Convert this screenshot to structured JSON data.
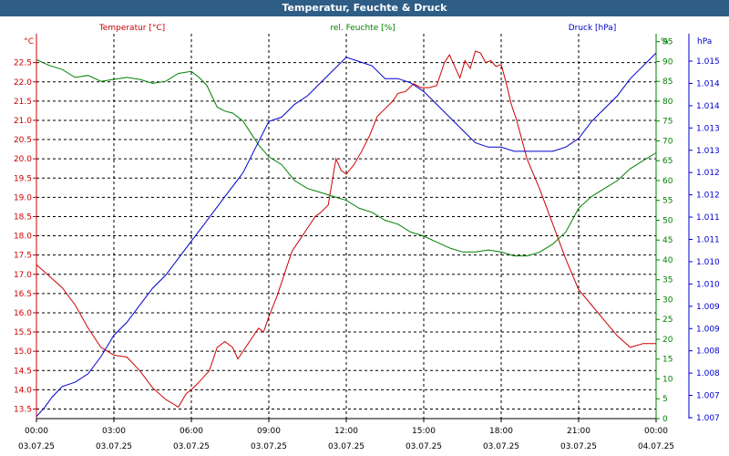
{
  "window": {
    "title": "Temperatur, Feuchte & Druck"
  },
  "colors": {
    "temperature": "#cc0000",
    "humidity": "#008000",
    "pressure": "#0000cc",
    "axis": "#000000",
    "grid": "#000000",
    "title_bg": "#2e5d86"
  },
  "chart_data": {
    "type": "line",
    "title": "Temperatur, Feuchte & Druck",
    "series_labels": {
      "temperature": "Temperatur [°C]",
      "humidity": "rel. Feuchte [%]",
      "pressure": "Druck [hPa]"
    },
    "axis_units": {
      "left": "°C",
      "right1": "%",
      "right2": "hPa"
    },
    "left_ticks": [
      "13.5",
      "14.0",
      "14.5",
      "15.0",
      "15.5",
      "16.0",
      "16.5",
      "17.0",
      "17.5",
      "18.0",
      "18.5",
      "19.0",
      "19.5",
      "20.0",
      "20.5",
      "21.0",
      "21.5",
      "22.0",
      "22.5"
    ],
    "right1_ticks": [
      "0",
      "5",
      "10",
      "15",
      "20",
      "25",
      "30",
      "35",
      "40",
      "45",
      "50",
      "55",
      "60",
      "65",
      "70",
      "75",
      "80",
      "85",
      "90",
      "95"
    ],
    "right2_ticks": [
      "1.007",
      "1.007",
      "1.008",
      "1.008",
      "1.009",
      "1.009",
      "1.010",
      "1.010",
      "1.011",
      "1.011",
      "1.012",
      "1.012",
      "1.013",
      "1.013",
      "1.014",
      "1.014",
      "1.015"
    ],
    "x_ticks": [
      {
        "time": "00:00",
        "date": "03.07.25"
      },
      {
        "time": "03:00",
        "date": "03.07.25"
      },
      {
        "time": "06:00",
        "date": "03.07.25"
      },
      {
        "time": "09:00",
        "date": "03.07.25"
      },
      {
        "time": "12:00",
        "date": "03.07.25"
      },
      {
        "time": "15:00",
        "date": "03.07.25"
      },
      {
        "time": "18:00",
        "date": "03.07.25"
      },
      {
        "time": "21:00",
        "date": "03.07.25"
      },
      {
        "time": "00:00",
        "date": "04.07.25"
      }
    ],
    "xlim_hours": [
      0,
      24
    ],
    "temp_range": [
      13.25,
      23.25
    ],
    "humidity_range": [
      0,
      97
    ],
    "pressure_range": [
      1.00675,
      1.01575
    ],
    "series": [
      {
        "key": "temperature",
        "name": "Temperatur [°C]",
        "x": [
          0,
          0.5,
          1,
          1.5,
          2,
          2.5,
          3,
          3.5,
          4,
          4.5,
          5,
          5.5,
          5.8,
          6,
          6.3,
          6.7,
          7,
          7.3,
          7.6,
          7.8,
          8,
          8.3,
          8.6,
          8.8,
          9,
          9.3,
          9.6,
          9.9,
          10.2,
          10.5,
          10.8,
          11,
          11.3,
          11.6,
          11.8,
          12,
          12.3,
          12.6,
          12.9,
          13.2,
          13.5,
          13.8,
          14,
          14.3,
          14.6,
          14.9,
          15.2,
          15.5,
          15.8,
          16,
          16.2,
          16.4,
          16.6,
          16.8,
          17,
          17.2,
          17.4,
          17.6,
          17.8,
          18,
          18.2,
          18.4,
          18.6,
          18.8,
          19,
          19.5,
          20,
          20.5,
          21,
          21.5,
          22,
          22.5,
          23,
          23.5,
          24
        ],
        "values": [
          17.25,
          16.95,
          16.65,
          16.2,
          15.6,
          15.1,
          14.9,
          14.85,
          14.5,
          14.05,
          13.75,
          13.55,
          13.9,
          14.0,
          14.2,
          14.5,
          15.1,
          15.25,
          15.1,
          14.8,
          15.0,
          15.3,
          15.6,
          15.5,
          15.9,
          16.4,
          17.0,
          17.6,
          17.9,
          18.2,
          18.5,
          18.6,
          18.8,
          20.0,
          19.7,
          19.6,
          19.85,
          20.2,
          20.6,
          21.1,
          21.3,
          21.5,
          21.7,
          21.75,
          21.95,
          21.85,
          21.85,
          21.9,
          22.5,
          22.7,
          22.4,
          22.1,
          22.55,
          22.35,
          22.8,
          22.75,
          22.5,
          22.55,
          22.4,
          22.45,
          21.95,
          21.4,
          21.0,
          20.5,
          20.0,
          19.2,
          18.3,
          17.4,
          16.6,
          16.2,
          15.8,
          15.4,
          15.1,
          15.2,
          15.2
        ]
      },
      {
        "key": "humidity",
        "name": "rel. Feuchte [%]",
        "x": [
          0,
          0.5,
          1,
          1.5,
          2,
          2.5,
          3,
          3.5,
          4,
          4.5,
          5,
          5.5,
          6,
          6.3,
          6.6,
          7,
          7.3,
          7.6,
          8,
          8.3,
          8.6,
          9,
          9.5,
          10,
          10.5,
          11,
          11.5,
          12,
          12.5,
          13,
          13.5,
          14,
          14.5,
          15,
          15.5,
          16,
          16.5,
          17,
          17.5,
          18,
          18.5,
          19,
          19.5,
          20,
          20.5,
          21,
          21.5,
          22,
          22.5,
          23,
          23.5,
          24
        ],
        "values": [
          90.5,
          89,
          88,
          86,
          86.5,
          85,
          85.5,
          86,
          85.5,
          84.5,
          85,
          87,
          87.5,
          86,
          84,
          78.5,
          77.5,
          77,
          75,
          72,
          69,
          66,
          64,
          60,
          58,
          57,
          56,
          55,
          53,
          52,
          50,
          49,
          47,
          46,
          44.5,
          43,
          42,
          42,
          42.5,
          42,
          41,
          41,
          42,
          44,
          47,
          53,
          56,
          58,
          60,
          63,
          65,
          67
        ]
      },
      {
        "key": "pressure",
        "name": "Druck [hPa]",
        "x": [
          0,
          0.3,
          0.6,
          1,
          1.5,
          2,
          2.5,
          3,
          3.5,
          4,
          4.5,
          5,
          5.5,
          6,
          6.5,
          7,
          7.5,
          8,
          8.5,
          9,
          9.5,
          10,
          10.5,
          11,
          11.5,
          12,
          12.5,
          13,
          13.5,
          14,
          14.5,
          15,
          15.5,
          16,
          16.5,
          17,
          17.5,
          18,
          18.5,
          19,
          19.5,
          20,
          20.5,
          21,
          21.5,
          22,
          22.5,
          23,
          23.5,
          24
        ],
        "values": [
          1.0068,
          1.007,
          1.00725,
          1.0075,
          1.0076,
          1.0078,
          1.0082,
          1.0087,
          1.009,
          1.0094,
          1.0098,
          1.0101,
          1.0105,
          1.0109,
          1.0113,
          1.0117,
          1.0121,
          1.0125,
          1.0131,
          1.0137,
          1.0138,
          1.0141,
          1.0143,
          1.0146,
          1.0149,
          1.0152,
          1.0151,
          1.015,
          1.0147,
          1.0147,
          1.0146,
          1.0144,
          1.0141,
          1.0138,
          1.0135,
          1.0132,
          1.0131,
          1.0131,
          1.013,
          1.013,
          1.013,
          1.013,
          1.0131,
          1.0133,
          1.0137,
          1.014,
          1.0143,
          1.0147,
          1.015,
          1.0153
        ]
      }
    ]
  }
}
